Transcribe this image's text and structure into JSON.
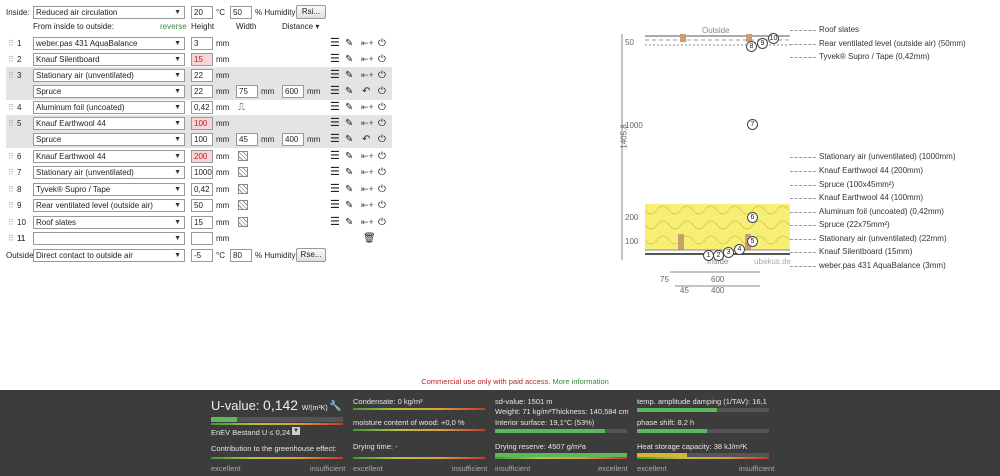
{
  "inside": {
    "label": "Inside:",
    "select": "Reduced air circulation",
    "temp": "20",
    "temp_unit": "°C",
    "humidity": "50",
    "humidity_unit": "% Humidity",
    "button": "Rsi..."
  },
  "header": {
    "from": "From inside to outside:",
    "reverse": "reverse",
    "height": "Height",
    "width": "Width",
    "distance": "Distance ▾"
  },
  "layers": [
    {
      "num": "1",
      "material": "weber.pas 431 AquaBalance",
      "height": "3",
      "unit": "mm"
    },
    {
      "num": "2",
      "material": "Knauf Silentboard",
      "height": "15",
      "unit": "mm"
    },
    {
      "num": "3",
      "material": "Stationary air (unventilated)",
      "height": "22",
      "unit": "mm"
    },
    {
      "num": "",
      "material": "Spruce",
      "height": "22",
      "unit": "mm",
      "width": "75",
      "width_unit": "mm",
      "distance": "600",
      "distance_unit": "mm"
    },
    {
      "num": "4",
      "material": "Aluminum foil (uncoated)",
      "height": "0,42",
      "unit": "mm"
    },
    {
      "num": "5",
      "material": "Knauf Earthwool 44",
      "height": "100",
      "unit": "mm"
    },
    {
      "num": "",
      "material": "Spruce",
      "height": "100",
      "unit": "mm",
      "width": "45",
      "width_unit": "mm",
      "distance": "400",
      "distance_unit": "mm"
    },
    {
      "num": "6",
      "material": "Knauf Earthwool 44",
      "height": "200",
      "unit": "mm"
    },
    {
      "num": "7",
      "material": "Stationary air (unventilated)",
      "height": "1000",
      "unit": "mm"
    },
    {
      "num": "8",
      "material": "Tyvek® Supro / Tape",
      "height": "0,42",
      "unit": "mm"
    },
    {
      "num": "9",
      "material": "Rear ventilated level (outside air)",
      "height": "50",
      "unit": "mm"
    },
    {
      "num": "10",
      "material": "Roof slates",
      "height": "15",
      "unit": "mm"
    },
    {
      "num": "11",
      "material": "",
      "height": "",
      "unit": "mm"
    }
  ],
  "outside": {
    "label": "Outside",
    "select": "Direct contact to outside air",
    "temp": "-5",
    "temp_unit": "°C",
    "humidity": "80",
    "humidity_unit": "% Humidity",
    "button": "Rse..."
  },
  "diagram": {
    "outside_label": "Outside",
    "inside_label": "Inside",
    "watermark": "ubakus.de",
    "thickness_label": "1405,8",
    "levels": [
      "50",
      "1000",
      "200",
      "100"
    ],
    "dims_row1": [
      "75",
      "600"
    ],
    "dims_row2": [
      "45",
      "400"
    ],
    "legend_top": [
      "Roof slates",
      "Rear ventilated level (outside air) (50mm)",
      "Tyvek® Supro / Tape (0,42mm)"
    ],
    "legend_bottom": [
      "Stationary air (unventilated) (1000mm)",
      "Knauf Earthwool 44 (200mm)",
      "Spruce (100x45mm²)",
      "Knauf Earthwool 44 (100mm)",
      "Aluminum foil (uncoated) (0,42mm)",
      "Spruce (22x75mm²)",
      "Stationary air (unventilated) (22mm)",
      "Knauf Silentboard (15mm)",
      "weber.pas 431 AquaBalance (3mm)"
    ],
    "circles": [
      "1",
      "2",
      "3",
      "4",
      "5",
      "6",
      "7",
      "8",
      "9",
      "10"
    ]
  },
  "notice": {
    "text": "Commercial use only with paid access.",
    "link": "More information"
  },
  "status": {
    "uvalue_label": "U-value:",
    "uvalue": "0,142",
    "uvalue_unit": "W/(m²K)",
    "enev": "EnEV Bestand U ≤ 0,24",
    "greenhouse": "Contribution to the greenhouse effect:",
    "excellent": "excellent",
    "insufficient": "insufficient",
    "condensate": "Condensate: 0 kg/m²",
    "moisture": "moisture content of wood: +0,0 %",
    "drying_time": "Drying time: -",
    "sd": "sd-value: 1501 m",
    "weight": "Weight: 71 kg/m²Thickness: 140,584 cm",
    "interior": "Interior surface: 19,1°C (53%)",
    "drying_reserve": "Drying reserve: 4507 g/m²a",
    "temp_amp": "temp. amplitude damping (1/TAV): 16,1",
    "phase": "phase shift: 8,2 h",
    "heat": "Heat storage capacity: 38 kJ/m²K",
    "uvalue_bar": 0.2,
    "colors": {
      "good": "#5cb85c",
      "bad": "#c33333",
      "warn": "#d4b73a"
    }
  }
}
